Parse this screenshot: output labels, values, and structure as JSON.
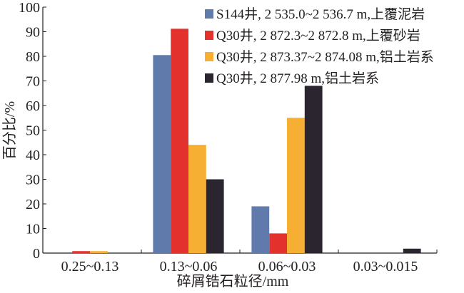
{
  "chart_data": {
    "type": "bar",
    "xlabel": "碎屑锆石粒径/mm",
    "ylabel": "百分比/%",
    "ylim": [
      0,
      100
    ],
    "yticks": [
      0,
      10,
      20,
      30,
      40,
      50,
      60,
      70,
      80,
      90,
      100
    ],
    "grid": false,
    "legend_position": "top-right",
    "categories": [
      "0.25~0.13",
      "0.13~0.06",
      "0.06~0.03",
      "0.03~0.015"
    ],
    "series": [
      {
        "name": "S144井, 2 535.0~2 536.7 m,上覆泥岩",
        "color": "#5f7aab",
        "values": [
          0,
          80.5,
          19,
          0
        ]
      },
      {
        "name": "Q30井, 2 872.3~2 872.8 m,上覆砂岩",
        "color": "#e3312d",
        "values": [
          0.8,
          91.2,
          8,
          0
        ]
      },
      {
        "name": "Q30井, 2 873.37~2 874.08 m,铝土岩系",
        "color": "#f6ae33",
        "values": [
          0.8,
          44,
          55,
          0
        ]
      },
      {
        "name": "Q30井, 2 877.98 m,铝土岩系",
        "color": "#2b2530",
        "values": [
          0,
          30,
          68,
          1.8
        ]
      }
    ]
  }
}
